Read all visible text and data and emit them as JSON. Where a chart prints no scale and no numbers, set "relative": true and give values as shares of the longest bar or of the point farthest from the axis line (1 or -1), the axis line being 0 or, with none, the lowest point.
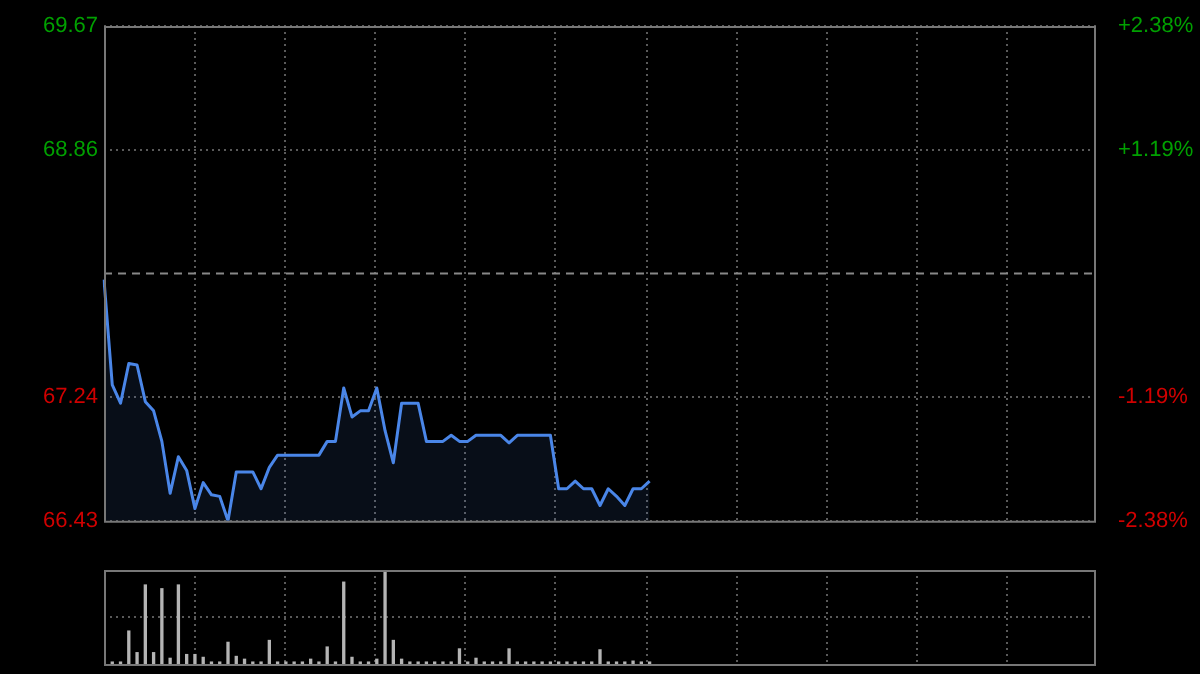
{
  "chart_data": [
    {
      "type": "area",
      "color": "#4a86e8",
      "line_style": "solid",
      "marker": "none",
      "grid": true,
      "categories": [
        null,
        null,
        null,
        null,
        null,
        null,
        null,
        null,
        null,
        null,
        null,
        null,
        null,
        null,
        null,
        null,
        null,
        null,
        null,
        null,
        null,
        null,
        null,
        null,
        null,
        null,
        null,
        null,
        null,
        null,
        null,
        null,
        null,
        null,
        null,
        null,
        null,
        null,
        null,
        null,
        null,
        null,
        null,
        null,
        null,
        null,
        null,
        null,
        null,
        null,
        null,
        null,
        null,
        null,
        null,
        null,
        null,
        null,
        null,
        null,
        null,
        null,
        null,
        null,
        null,
        null,
        null,
        null,
        null,
        null,
        null,
        null,
        null,
        null,
        null,
        null,
        null,
        null,
        null,
        null,
        null,
        null,
        null,
        null,
        null,
        null,
        null,
        null,
        null,
        null,
        null,
        null,
        null,
        null,
        null,
        null,
        null,
        null,
        null,
        null,
        null,
        null,
        null,
        null,
        null,
        null,
        null,
        null,
        null,
        null,
        null,
        null,
        null,
        null,
        null,
        null,
        null,
        null,
        null,
        null,
        null
      ],
      "values": [
        68.01,
        67.32,
        67.2,
        67.46,
        67.45,
        67.21,
        67.15,
        66.95,
        66.61,
        66.85,
        66.76,
        66.51,
        66.68,
        66.6,
        66.59,
        66.43,
        66.75,
        66.75,
        66.75,
        66.64,
        66.78,
        66.86,
        66.86,
        66.86,
        66.86,
        66.86,
        66.86,
        66.95,
        66.95,
        67.3,
        67.11,
        67.15,
        67.15,
        67.3,
        67.02,
        66.81,
        67.2,
        67.2,
        67.2,
        66.95,
        66.95,
        66.95,
        66.99,
        66.95,
        66.95,
        66.99,
        66.99,
        66.99,
        66.99,
        66.94,
        66.99,
        66.99,
        66.99,
        66.99,
        66.99,
        66.64,
        66.64,
        66.69,
        66.64,
        66.64,
        66.53,
        66.64,
        66.59,
        66.53,
        66.64,
        66.64,
        66.69,
        null,
        null,
        null,
        null,
        null,
        null,
        null,
        null,
        null,
        null,
        null,
        null,
        null,
        null,
        null,
        null,
        null,
        null,
        null,
        null,
        null,
        null,
        null,
        null,
        null,
        null,
        null,
        null,
        null,
        null,
        null,
        null,
        null,
        null,
        null,
        null,
        null,
        null,
        null,
        null,
        null,
        null,
        null,
        null,
        null,
        null,
        null,
        null,
        null,
        null,
        null,
        null,
        null,
        null
      ],
      "ylim": [
        66.43,
        69.67
      ],
      "yticks": [
        66.43,
        67.24,
        68.86,
        69.67
      ],
      "y2lim": [
        -2.38,
        2.38
      ],
      "y2ticks": [
        {
          "value": -2.38,
          "label": "-2.38%"
        },
        {
          "value": -1.19,
          "label": "-1.19%"
        },
        {
          "value": 1.19,
          "label": "+1.19%"
        },
        {
          "value": 2.38,
          "label": "+2.38%"
        }
      ],
      "ref_lines": [
        {
          "axis": "y",
          "value": 68.05,
          "line_style": "dashed"
        }
      ]
    },
    {
      "type": "bar",
      "color": "#b4b4b4",
      "relative": true,
      "grid": true,
      "categories": [
        null,
        null,
        null,
        null,
        null,
        null,
        null,
        null,
        null,
        null,
        null,
        null,
        null,
        null,
        null,
        null,
        null,
        null,
        null,
        null,
        null,
        null,
        null,
        null,
        null,
        null,
        null,
        null,
        null,
        null,
        null,
        null,
        null,
        null,
        null,
        null,
        null,
        null,
        null,
        null,
        null,
        null,
        null,
        null,
        null,
        null,
        null,
        null,
        null,
        null,
        null,
        null,
        null,
        null,
        null,
        null,
        null,
        null,
        null,
        null,
        null,
        null,
        null,
        null,
        null,
        null,
        null,
        null,
        null,
        null,
        null,
        null,
        null,
        null,
        null,
        null,
        null,
        null,
        null,
        null,
        null,
        null,
        null,
        null,
        null,
        null,
        null,
        null,
        null,
        null,
        null,
        null,
        null,
        null,
        null,
        null,
        null,
        null,
        null,
        null,
        null,
        null,
        null,
        null,
        null,
        null,
        null,
        null,
        null,
        null,
        null,
        null,
        null,
        null,
        null,
        null,
        null,
        null,
        null,
        null,
        null
      ],
      "values": [
        0.02,
        0.02,
        0.02,
        0.35,
        0.12,
        0.84,
        0.12,
        0.8,
        0.06,
        0.84,
        0.1,
        0.1,
        0.07,
        0.02,
        0.02,
        0.23,
        0.08,
        0.05,
        0.02,
        0.02,
        0.25,
        0.02,
        0.02,
        0.02,
        0.02,
        0.05,
        0.02,
        0.18,
        0.02,
        0.87,
        0.07,
        0.02,
        0.02,
        0.05,
        1,
        0.25,
        0.05,
        0.02,
        0.02,
        0.02,
        0.02,
        0.02,
        0.02,
        0.16,
        0.02,
        0.06,
        0.02,
        0.02,
        0.02,
        0.16,
        0.02,
        0.02,
        0.02,
        0.02,
        0.02,
        0.02,
        0.02,
        0.02,
        0.02,
        0.02,
        0.15,
        0.02,
        0.02,
        0.02,
        0.03,
        0.02,
        0.02,
        null,
        null,
        null,
        null,
        null,
        null,
        null,
        null,
        null,
        null,
        null,
        null,
        null,
        null,
        null,
        null,
        null,
        null,
        null,
        null,
        null,
        null,
        null,
        null,
        null,
        null,
        null,
        null,
        null,
        null,
        null,
        null,
        null,
        null,
        null,
        null,
        null,
        null,
        null,
        null,
        null,
        null,
        null,
        null,
        null,
        null,
        null,
        null,
        null,
        null,
        null,
        null,
        null,
        null
      ]
    }
  ]
}
